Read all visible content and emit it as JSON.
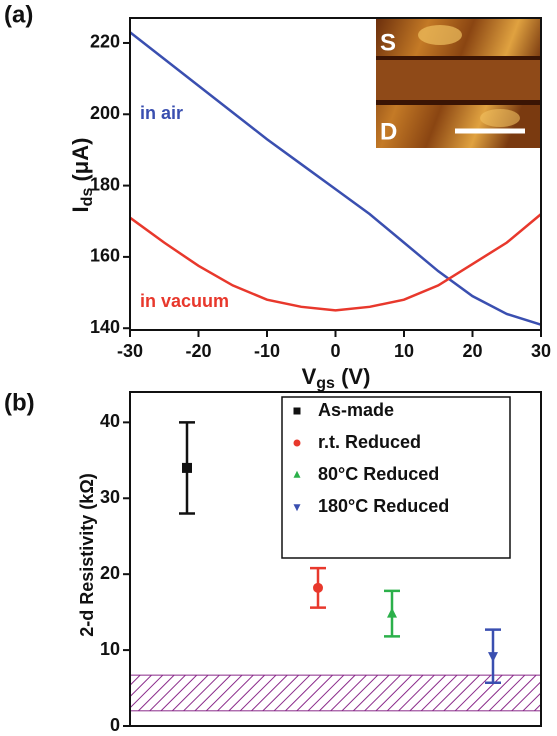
{
  "chart_data": [
    {
      "type": "line",
      "panel": "(a)",
      "ylabel": {
        "main": "I",
        "sub": "ds",
        "unit": " (μA)"
      },
      "xlabel": {
        "main": "V",
        "sub": "gs",
        "unit": " (V)"
      },
      "x": [
        -30,
        -25,
        -20,
        -15,
        -10,
        -5,
        0,
        5,
        10,
        15,
        20,
        25,
        30
      ],
      "series": [
        {
          "name": "in air",
          "color": "#3a4fb0",
          "values": [
            223,
            215.5,
            208,
            200.5,
            193,
            186,
            179,
            172,
            164,
            156,
            149,
            144,
            141
          ]
        },
        {
          "name": "in vacuum",
          "color": "#e8382c",
          "values": [
            171,
            164,
            157.5,
            152,
            148,
            146,
            145,
            146,
            148,
            152,
            158,
            164,
            172
          ]
        }
      ],
      "xlim": [
        -30,
        30
      ],
      "xticks": [
        -30,
        -20,
        -10,
        0,
        10,
        20,
        30
      ],
      "ylim": [
        139.5,
        227
      ],
      "yticks": [
        140,
        160,
        180,
        200,
        220
      ],
      "inset_labels": [
        "S",
        "D"
      ]
    },
    {
      "type": "errorbar",
      "panel": "(b)",
      "ylabel": "2-d Resistivity (kΩ)",
      "ylim": [
        0,
        44
      ],
      "yticks": [
        0,
        10,
        20,
        30,
        40
      ],
      "series": [
        {
          "name": "As-made",
          "color": "#111111",
          "marker": "square",
          "values": [
            34
          ],
          "errors": [
            6
          ]
        },
        {
          "name": "r.t. Reduced",
          "color": "#e8382c",
          "marker": "circle",
          "values": [
            18.2
          ],
          "errors": [
            2.6
          ]
        },
        {
          "name": "80°C Reduced",
          "color": "#2bb04a",
          "marker": "triangle-up",
          "values": [
            14.8
          ],
          "errors": [
            3
          ]
        },
        {
          "name": "180°C Reduced",
          "color": "#3a4fb0",
          "marker": "triangle-down",
          "values": [
            9.2
          ],
          "errors": [
            3.5
          ]
        }
      ],
      "band": [
        2,
        6.7
      ],
      "band_color": "#8a2a8a"
    }
  ]
}
